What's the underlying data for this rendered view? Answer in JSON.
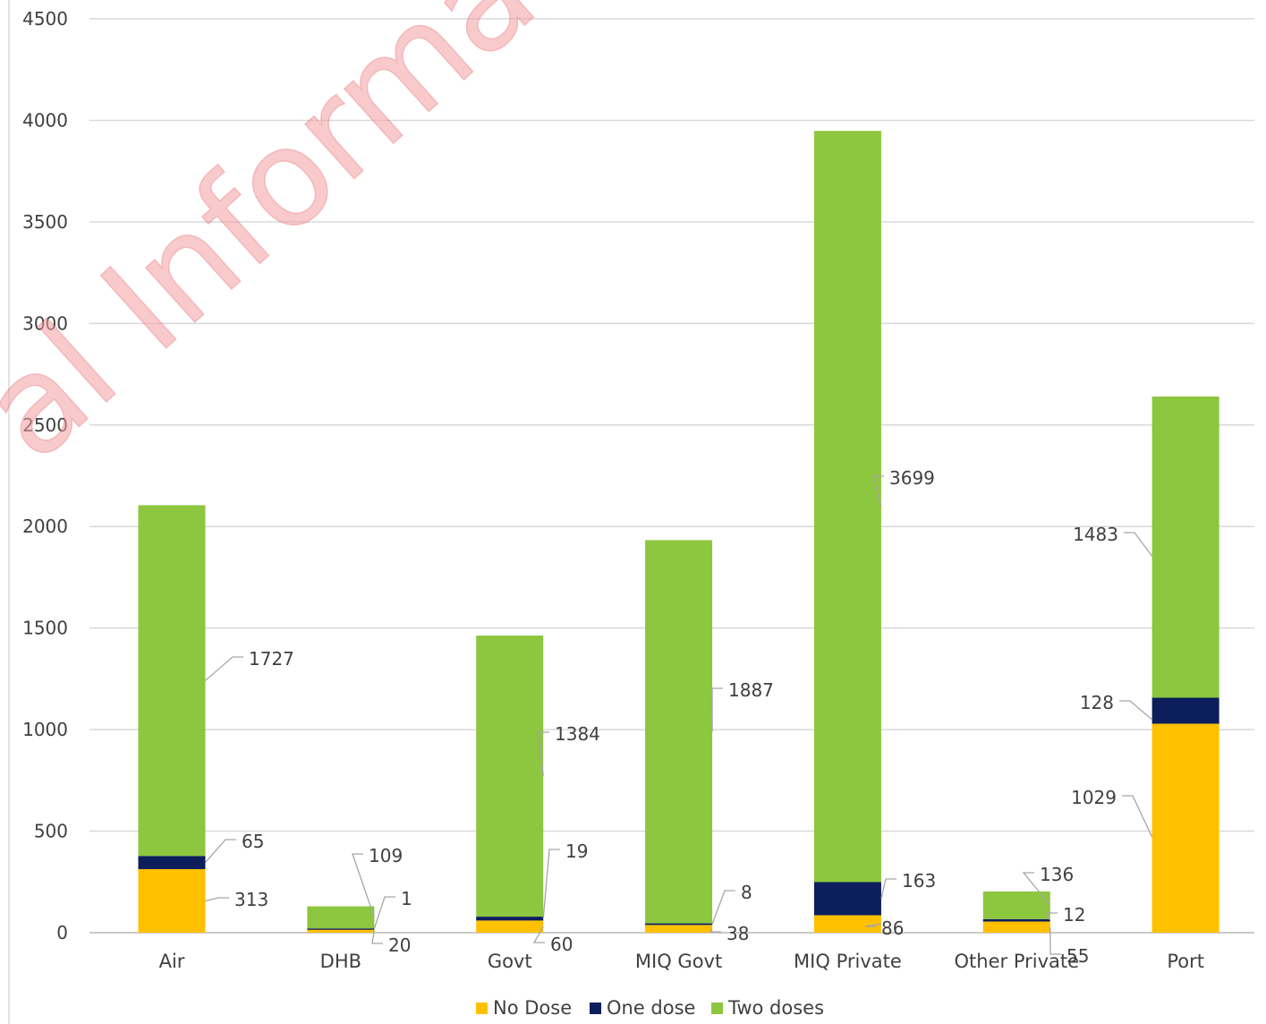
{
  "watermark": {
    "text": "al Informatio",
    "color": "#e0383f"
  },
  "chart_data": {
    "type": "bar",
    "stacked": true,
    "categories": [
      "Air",
      "DHB",
      "Govt",
      "MIQ Govt",
      "MIQ Private",
      "Other Private",
      "Port"
    ],
    "series": [
      {
        "name": "No Dose",
        "color": "#ffc000",
        "values": [
          313,
          20,
          60,
          38,
          86,
          55,
          1029
        ]
      },
      {
        "name": "One dose",
        "color": "#0c1e5b",
        "values": [
          65,
          1,
          19,
          8,
          163,
          12,
          128
        ]
      },
      {
        "name": "Two doses",
        "color": "#8dc63f",
        "values": [
          1727,
          109,
          1384,
          1887,
          3699,
          136,
          1483
        ]
      }
    ],
    "data_labels": [
      {
        "category": "Air",
        "No Dose": "313",
        "One dose": "65",
        "Two doses": "1727"
      },
      {
        "category": "DHB",
        "No Dose": "20",
        "One dose": "1",
        "Two doses": "109"
      },
      {
        "category": "Govt",
        "No Dose": "60",
        "One dose": "19",
        "Two doses": "1384"
      },
      {
        "category": "MIQ Govt",
        "No Dose": "38",
        "One dose": "8",
        "Two doses": "1887"
      },
      {
        "category": "MIQ Private",
        "No Dose": "86",
        "One dose": "163",
        "Two doses": "3699"
      },
      {
        "category": "Other Private",
        "No Dose": "55",
        "One dose": "12",
        "Two doses": "136"
      },
      {
        "category": "Port",
        "No Dose": "1029",
        "One dose": "128",
        "Two doses": "1483"
      }
    ],
    "y_ticks": [
      "0",
      "500",
      "1000",
      "1500",
      "2000",
      "2500",
      "3000",
      "3500",
      "4000",
      "4500"
    ],
    "ylim": [
      0,
      4500
    ],
    "grid": true,
    "legend": "bottom-center"
  }
}
